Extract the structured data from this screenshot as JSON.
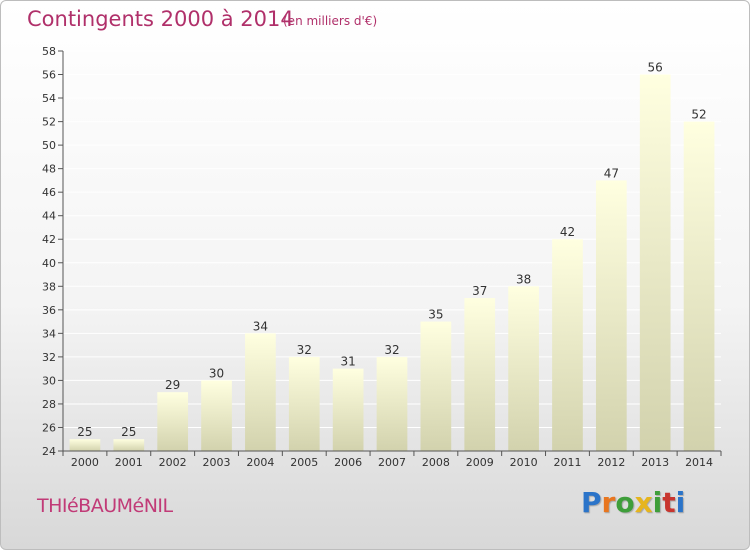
{
  "header": {
    "title": "Contingents 2000 à 2014",
    "subtitle": "(en milliers d'€)"
  },
  "footer": {
    "city": "THIéBAUMéNIL",
    "logo_letters": [
      "P",
      "r",
      "o",
      "x",
      "i",
      "t",
      "i"
    ],
    "logo_colors": [
      "#2b74c9",
      "#e8761f",
      "#3e9e3a",
      "#e6b51e",
      "#3e9e3a",
      "#c8352f",
      "#2b74c9"
    ]
  },
  "colors": {
    "bar_top": "#ffffe0",
    "bar_bottom": "#d2d2ad",
    "axis": "#555555",
    "grid": "#ffffff"
  },
  "chart_data": {
    "type": "bar",
    "title": "Contingents 2000 à 2014",
    "subtitle": "(en milliers d'€)",
    "categories": [
      "2000",
      "2001",
      "2002",
      "2003",
      "2004",
      "2005",
      "2006",
      "2007",
      "2008",
      "2009",
      "2010",
      "2011",
      "2012",
      "2013",
      "2014"
    ],
    "values": [
      25,
      25,
      29,
      30,
      34,
      32,
      31,
      32,
      35,
      37,
      38,
      42,
      47,
      56,
      52
    ],
    "ylim": [
      24,
      58
    ],
    "yticks": [
      24,
      26,
      28,
      30,
      32,
      34,
      36,
      38,
      40,
      42,
      44,
      46,
      48,
      50,
      52,
      54,
      56,
      58
    ],
    "xlabel": "",
    "ylabel": "",
    "grid": true,
    "data_labels": true
  }
}
